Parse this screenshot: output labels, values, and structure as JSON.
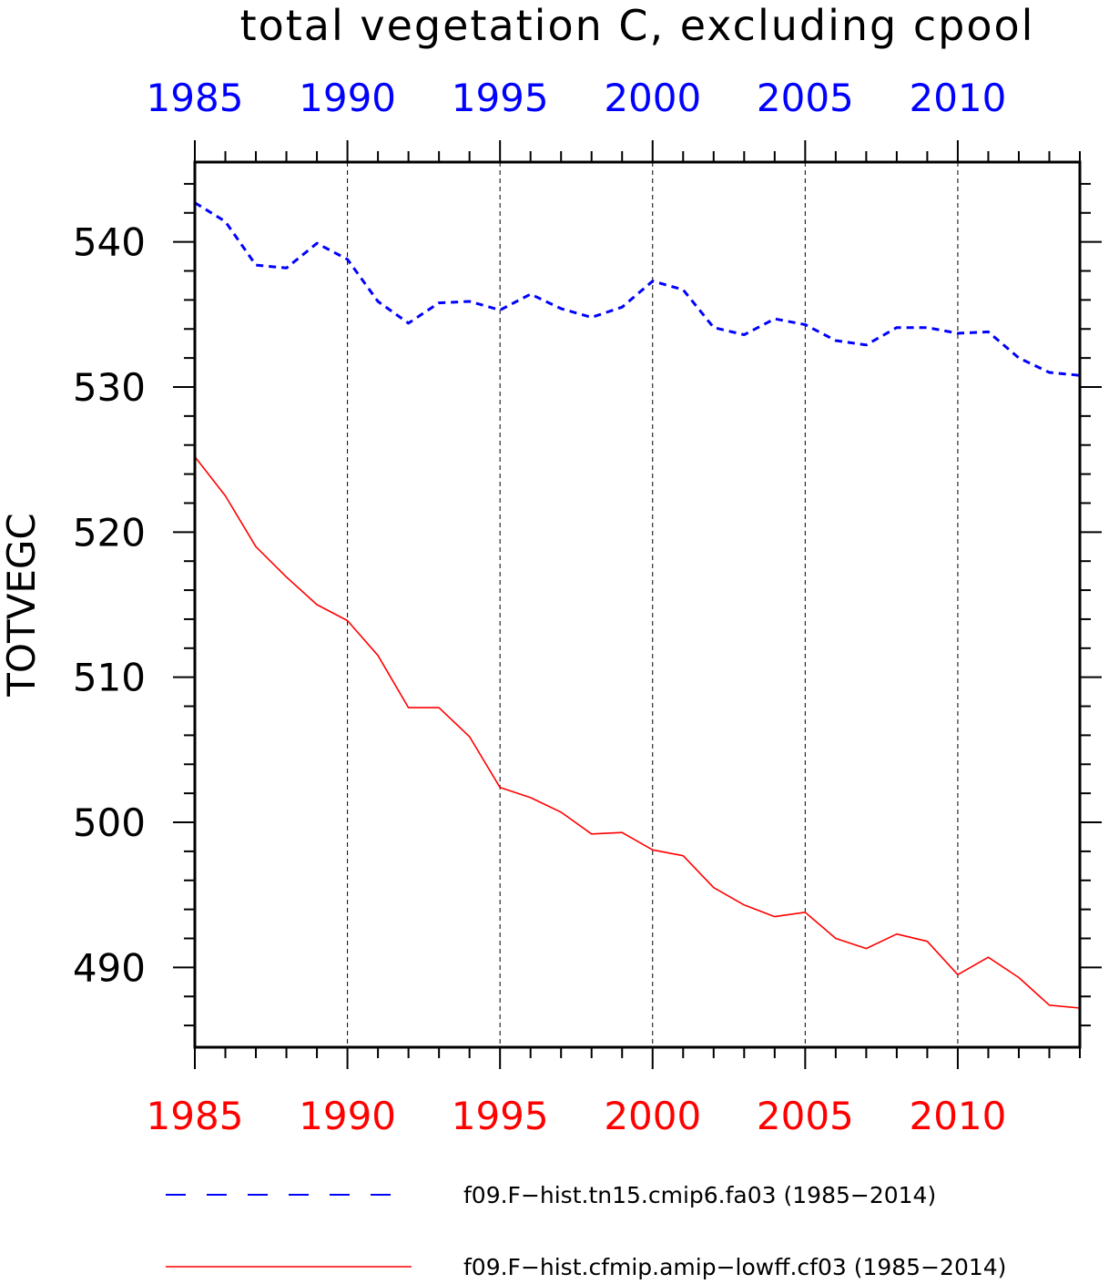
{
  "chart_data": {
    "type": "line",
    "title": "total vegetation C, excluding cpool",
    "ylabel": "TOTVEGC",
    "xlabel": "",
    "xlim": [
      1985,
      2014
    ],
    "ylim": [
      484.5,
      545.5
    ],
    "x_ticks": [
      1985,
      1990,
      1995,
      2000,
      2005,
      2010
    ],
    "y_ticks": [
      490,
      500,
      510,
      520,
      530,
      540
    ],
    "top_axis_color": "#0000ff",
    "bottom_axis_color": "#ff0000",
    "vertical_grid": "dashed at major x ticks",
    "legend_position": "bottom",
    "x": [
      1985,
      1986,
      1987,
      1988,
      1989,
      1990,
      1991,
      1992,
      1993,
      1994,
      1995,
      1996,
      1997,
      1998,
      1999,
      2000,
      2001,
      2002,
      2003,
      2004,
      2005,
      2006,
      2007,
      2008,
      2009,
      2010,
      2011,
      2012,
      2013,
      2014
    ],
    "series": [
      {
        "name": "f09.F−hist.tn15.cmip6.fa03 (1985−2014)",
        "color": "#0000ff",
        "dash": "dashed",
        "values": [
          542.7,
          541.4,
          538.4,
          538.2,
          539.9,
          538.8,
          535.9,
          534.4,
          535.8,
          535.9,
          535.3,
          536.4,
          535.4,
          534.8,
          535.5,
          537.3,
          536.7,
          534.1,
          533.6,
          534.7,
          534.3,
          533.2,
          532.9,
          534.1,
          534.1,
          533.7,
          533.8,
          532.0,
          531.0,
          530.8
        ]
      },
      {
        "name": "f09.F−hist.cfmip.amip−lowff.cf03 (1985−2014)",
        "color": "#ff0000",
        "dash": "solid",
        "values": [
          525.2,
          522.5,
          519.0,
          516.9,
          515.0,
          513.9,
          511.5,
          507.9,
          507.9,
          505.9,
          502.4,
          501.7,
          500.7,
          499.2,
          499.3,
          498.1,
          497.7,
          495.5,
          494.3,
          493.5,
          493.8,
          492.0,
          491.3,
          492.3,
          491.8,
          489.5,
          490.7,
          489.3,
          487.4,
          487.2
        ]
      }
    ]
  }
}
